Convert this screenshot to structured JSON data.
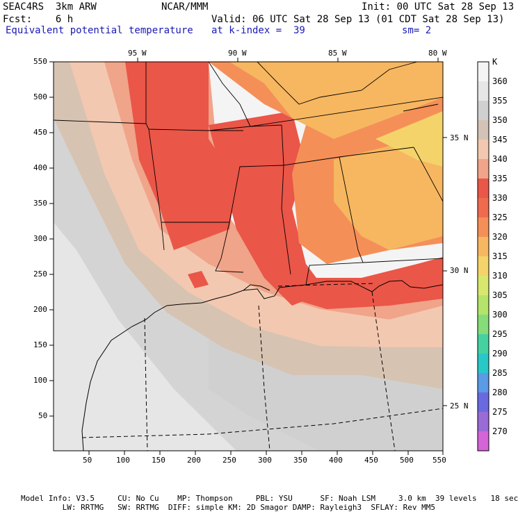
{
  "header": {
    "model": "SEAC4RS  3km ARW",
    "org": "NCAR/MMM",
    "init": "Init: 00 UTC Sat 28 Sep 13",
    "fcst": "Fcst:    6 h",
    "valid": "Valid: 06 UTC Sat 28 Sep 13 (01 CDT Sat 28 Sep 13)",
    "field": "Equivalent potential temperature",
    "level": "at k-index =  39",
    "smooth": "sm= 2"
  },
  "axes": {
    "x_ticks": [
      "50",
      "100",
      "150",
      "200",
      "250",
      "300",
      "350",
      "400",
      "450",
      "500",
      "550"
    ],
    "y_ticks": [
      "550",
      "500",
      "450",
      "400",
      "350",
      "300",
      "250",
      "200",
      "150",
      "100",
      "50"
    ],
    "lon_labels": [
      "95 W",
      "90 W",
      "85 W",
      "80 W"
    ],
    "lat_labels": [
      "35 N",
      "30 N",
      "25 N"
    ]
  },
  "colorbar": {
    "unit": "K",
    "levels": [
      "360",
      "355",
      "350",
      "345",
      "340",
      "335",
      "330",
      "325",
      "320",
      "315",
      "310",
      "305",
      "300",
      "295",
      "290",
      "285",
      "280",
      "275",
      "270"
    ],
    "colors": [
      "#f4f4f4",
      "#e6e6e6",
      "#d0d0d0",
      "#d2c3b6",
      "#f3c8b0",
      "#f0a48a",
      "#ea5648",
      "#f06a4e",
      "#f58f58",
      "#f6b760",
      "#f4d36a",
      "#d8e86e",
      "#b4e46a",
      "#86dc78",
      "#46d2a0",
      "#28c8c8",
      "#5a9ae6",
      "#6a6ae0",
      "#9a6ad6",
      "#d464d8"
    ]
  },
  "footer": {
    "line1": "Model Info: V3.5     CU: No Cu    MP: Thompson     PBL: YSU      SF: Noah LSM     3.0 km  39 levels   18 sec",
    "line2": "         LW: RRTMG   SW: RRTMG  DIFF: simple KM: 2D Smagor DAMP: Rayleigh3  SFLAY: Rev MM5"
  }
}
